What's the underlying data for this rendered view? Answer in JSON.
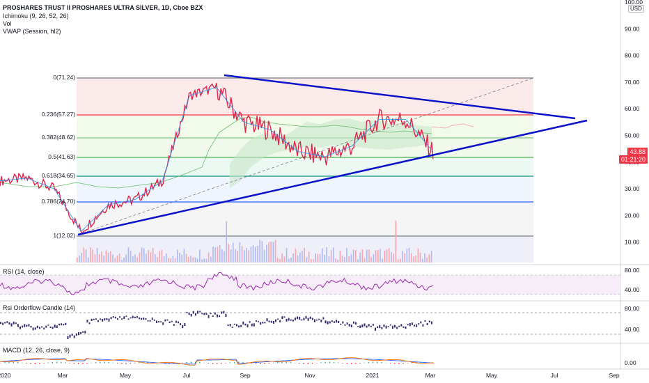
{
  "header": {
    "symbol": "PROSHARES TRUST II PROSHARES ULTRA SILVER, 1D, Cboe BZX",
    "indicators": [
      "Ichimoku (9, 26, 52, 26)",
      "Vol",
      "VWAP (Session, hl2)"
    ]
  },
  "price_scale": {
    "currency": "USD",
    "ticks": [
      "100.00",
      "90.00",
      "80.00",
      "70.00",
      "60.00",
      "50.00",
      "40.00",
      "30.00",
      "20.00",
      "10.00"
    ],
    "last_price": "43.88",
    "countdown": "01:21:20",
    "last_price_color": "#f23645"
  },
  "fib_levels": [
    {
      "label": "0(71.24)",
      "color": "#787b86"
    },
    {
      "label": "0.236(57.27)",
      "color": "#f23645"
    },
    {
      "label": "0.382(48.62)",
      "color": "#81c784"
    },
    {
      "label": "0.5(41.63)",
      "color": "#4caf50"
    },
    {
      "label": "0.618(34.65)",
      "color": "#089981"
    },
    {
      "label": "0.786(24.70)",
      "color": "#2962ff"
    },
    {
      "label": "1(12.02)",
      "color": "#787b86"
    }
  ],
  "panes": {
    "rsi": {
      "title": "RSI (14, close)",
      "ticks": [
        "80.00",
        "40.00"
      ]
    },
    "rsi_candle": {
      "title": "Rsi Orderflow Candle (14)",
      "ticks": [
        "80.00",
        "40.00"
      ]
    },
    "macd": {
      "title": "MACD (12, 26, close, 9)",
      "ticks": [
        "0.00"
      ]
    }
  },
  "time_axis": [
    "2020",
    "Mar",
    "May",
    "Jul",
    "Sep",
    "Nov",
    "2021",
    "Mar",
    "May",
    "Jul",
    "Sep"
  ],
  "colors": {
    "trendline": "#0b12c9",
    "price_line": "#e0244a",
    "up": "#26a69a",
    "down": "#ef5350",
    "rsi_line": "#9c27b0",
    "candle": "#3b2a70"
  },
  "chart_data": {
    "type": "line",
    "title": "PROSHARES TRUST II PROSHARES ULTRA SILVER, 1D, Cboe BZX",
    "ylim": [
      0,
      100
    ],
    "x": [
      "2020-01",
      "2020-02",
      "2020-03",
      "2020-03",
      "2020-04",
      "2020-05",
      "2020-06",
      "2020-07",
      "2020-08",
      "2020-08",
      "2020-09",
      "2020-10",
      "2020-11",
      "2020-12",
      "2021-01",
      "2021-02",
      "2021-03"
    ],
    "series": [
      {
        "values": [
          33,
          34,
          30,
          14,
          24,
          26,
          33,
          65,
          68,
          55,
          52,
          44,
          42,
          46,
          56,
          56,
          43.88
        ]
      }
    ]
  }
}
